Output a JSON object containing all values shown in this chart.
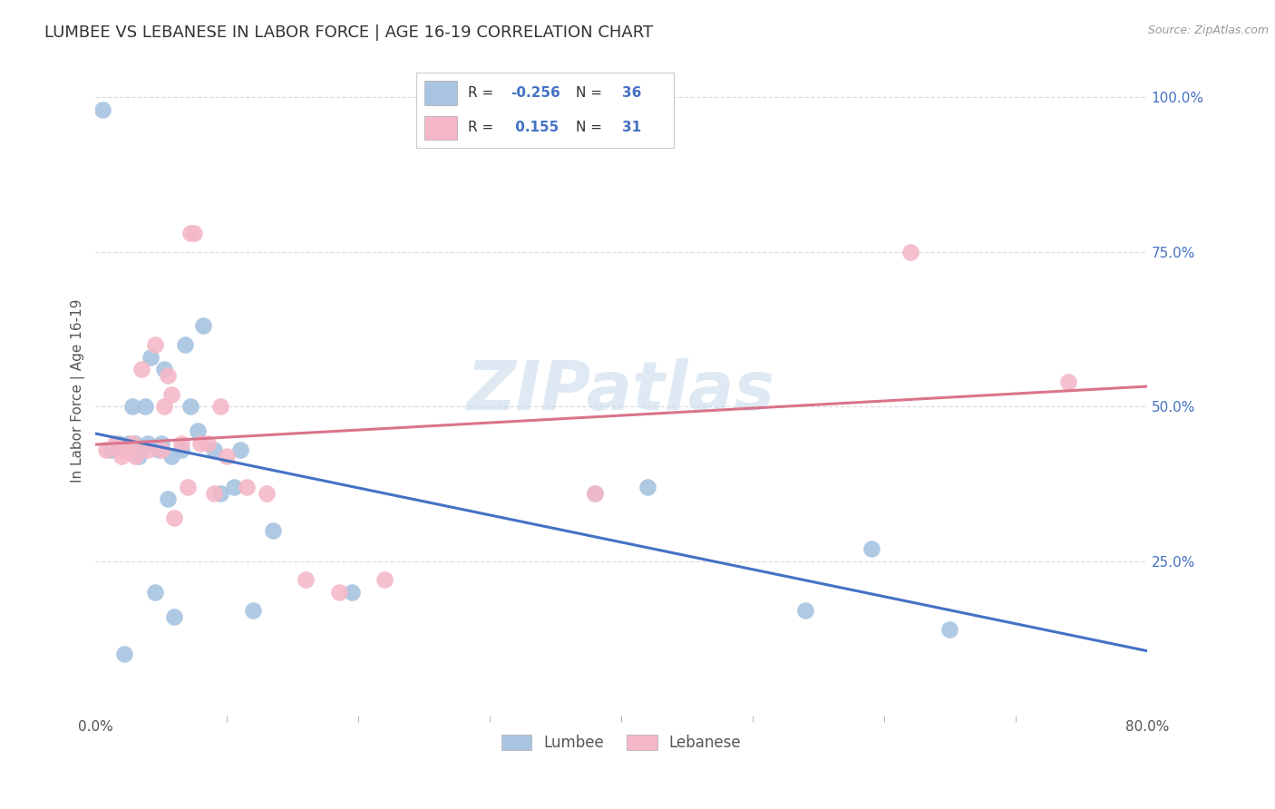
{
  "title": "LUMBEE VS LEBANESE IN LABOR FORCE | AGE 16-19 CORRELATION CHART",
  "source": "Source: ZipAtlas.com",
  "ylabel": "In Labor Force | Age 16-19",
  "xlim": [
    0.0,
    0.8
  ],
  "ylim": [
    0.0,
    1.05
  ],
  "ytick_vals": [
    0.25,
    0.5,
    0.75,
    1.0
  ],
  "watermark": "ZIPatlas",
  "lumbee_R": "-0.256",
  "lumbee_N": "36",
  "lebanese_R": "0.155",
  "lebanese_N": "31",
  "lumbee_color": "#a8c4e0",
  "lebanese_color": "#f4b8c8",
  "lumbee_line_color": "#4472c4",
  "lebanese_line_color": "#d9748a",
  "lumbee_x": [
    0.005,
    0.012,
    0.018,
    0.022,
    0.025,
    0.028,
    0.03,
    0.033,
    0.035,
    0.038,
    0.04,
    0.042,
    0.045,
    0.048,
    0.05,
    0.052,
    0.055,
    0.058,
    0.06,
    0.065,
    0.068,
    0.072,
    0.078,
    0.082,
    0.09,
    0.095,
    0.105,
    0.11,
    0.12,
    0.135,
    0.195,
    0.38,
    0.42,
    0.54,
    0.59,
    0.65
  ],
  "lumbee_y": [
    0.98,
    0.43,
    0.44,
    0.1,
    0.44,
    0.5,
    0.44,
    0.42,
    0.43,
    0.5,
    0.44,
    0.58,
    0.2,
    0.43,
    0.44,
    0.56,
    0.35,
    0.42,
    0.16,
    0.43,
    0.6,
    0.5,
    0.46,
    0.63,
    0.43,
    0.36,
    0.37,
    0.43,
    0.17,
    0.3,
    0.2,
    0.36,
    0.37,
    0.17,
    0.27,
    0.14
  ],
  "lebanese_x": [
    0.008,
    0.015,
    0.02,
    0.022,
    0.028,
    0.03,
    0.035,
    0.04,
    0.045,
    0.05,
    0.052,
    0.055,
    0.058,
    0.06,
    0.065,
    0.07,
    0.072,
    0.075,
    0.08,
    0.085,
    0.09,
    0.095,
    0.1,
    0.115,
    0.13,
    0.16,
    0.185,
    0.22,
    0.38,
    0.62,
    0.74
  ],
  "lebanese_y": [
    0.43,
    0.44,
    0.42,
    0.43,
    0.44,
    0.42,
    0.56,
    0.43,
    0.6,
    0.43,
    0.5,
    0.55,
    0.52,
    0.32,
    0.44,
    0.37,
    0.78,
    0.78,
    0.44,
    0.44,
    0.36,
    0.5,
    0.42,
    0.37,
    0.36,
    0.22,
    0.2,
    0.22,
    0.36,
    0.75,
    0.54
  ],
  "grid_color": "#dddddd",
  "background_color": "#ffffff",
  "title_fontsize": 13,
  "axis_label_fontsize": 11,
  "tick_fontsize": 11
}
